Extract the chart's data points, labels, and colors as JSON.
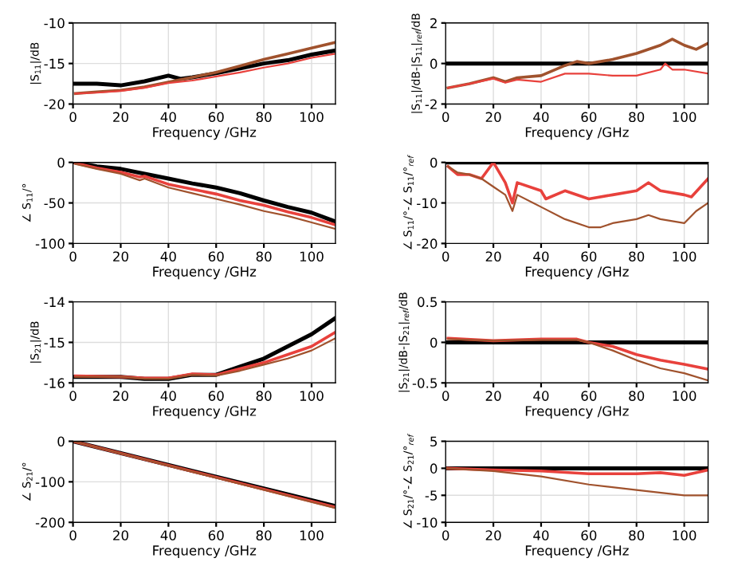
{
  "chart_data": [
    {
      "type": "line",
      "ylabel": "|S$_{11}$|/dB",
      "xlabel": "Frequency /GHz",
      "xlim": [
        0,
        110
      ],
      "xticks": [
        0,
        20,
        40,
        60,
        80,
        100
      ],
      "ylim": [
        -20,
        -10
      ],
      "yticks": [
        -20,
        -15,
        -10
      ],
      "grid": true,
      "series": [
        {
          "color": "#000000",
          "x": [
            1,
            10,
            20,
            30,
            40,
            45,
            50,
            60,
            70,
            80,
            90,
            100,
            110
          ],
          "values": [
            -17.5,
            -17.5,
            -17.7,
            -17.2,
            -16.5,
            -16.9,
            -16.7,
            -16.2,
            -15.6,
            -15.0,
            -14.6,
            -13.9,
            -13.4
          ]
        },
        {
          "color": "#a0522d",
          "x": [
            1,
            10,
            20,
            30,
            40,
            50,
            60,
            70,
            80,
            90,
            100,
            110
          ],
          "values": [
            -18.7,
            -18.5,
            -18.3,
            -17.9,
            -17.3,
            -16.7,
            -16.1,
            -15.3,
            -14.5,
            -13.8,
            -13.1,
            -12.4
          ]
        },
        {
          "color": "#e8413c",
          "x": [
            1,
            10,
            20,
            30,
            40,
            50,
            60,
            70,
            80,
            90,
            100,
            110
          ],
          "values": [
            -18.7,
            -18.6,
            -18.4,
            -18.0,
            -17.4,
            -17.1,
            -16.6,
            -16.1,
            -15.5,
            -15.0,
            -14.3,
            -13.8
          ]
        }
      ]
    },
    {
      "type": "line",
      "ylabel": "|S$_{11}$|/dB-|S$_{11}$|$_{ref}$/dB",
      "xlabel": "Frequency /GHz",
      "xlim": [
        0,
        110
      ],
      "xticks": [
        0,
        20,
        40,
        60,
        80,
        100
      ],
      "ylim": [
        -2,
        2
      ],
      "yticks": [
        -2,
        0,
        2
      ],
      "grid": true,
      "series": [
        {
          "color": "#000000",
          "x": [
            0,
            110
          ],
          "values": [
            0,
            0
          ]
        },
        {
          "color": "#a0522d",
          "x": [
            1,
            10,
            20,
            25,
            30,
            40,
            50,
            55,
            60,
            70,
            80,
            90,
            95,
            100,
            105,
            110
          ],
          "values": [
            -1.2,
            -1.0,
            -0.7,
            -0.9,
            -0.7,
            -0.6,
            -0.1,
            0.1,
            0.0,
            0.2,
            0.5,
            0.9,
            1.2,
            0.9,
            0.7,
            1.0
          ]
        },
        {
          "color": "#e8413c",
          "x": [
            1,
            10,
            20,
            25,
            30,
            40,
            50,
            60,
            70,
            80,
            90,
            92,
            95,
            100,
            110
          ],
          "values": [
            -1.2,
            -1.0,
            -0.75,
            -0.95,
            -0.8,
            -0.9,
            -0.5,
            -0.5,
            -0.6,
            -0.6,
            -0.3,
            0.0,
            -0.3,
            -0.3,
            -0.5
          ]
        }
      ]
    },
    {
      "type": "line",
      "ylabel": "∠ S$_{11}$/°",
      "xlabel": "Frequency /GHz",
      "xlim": [
        0,
        110
      ],
      "xticks": [
        0,
        20,
        40,
        60,
        80,
        100
      ],
      "ylim": [
        -100,
        0
      ],
      "yticks": [
        -100,
        -50,
        0
      ],
      "grid": true,
      "series": [
        {
          "color": "#000000",
          "x": [
            1,
            10,
            20,
            30,
            40,
            50,
            60,
            70,
            80,
            90,
            100,
            110
          ],
          "values": [
            0,
            -5,
            -8,
            -14,
            -20,
            -26,
            -31,
            -38,
            -47,
            -55,
            -62,
            -73
          ]
        },
        {
          "color": "#e8413c",
          "x": [
            1,
            10,
            20,
            28,
            30,
            40,
            50,
            60,
            70,
            80,
            90,
            100,
            110
          ],
          "values": [
            -1,
            -7,
            -12,
            -18,
            -17,
            -27,
            -33,
            -39,
            -47,
            -53,
            -61,
            -68,
            -77
          ]
        },
        {
          "color": "#a0522d",
          "x": [
            1,
            10,
            20,
            28,
            30,
            40,
            50,
            60,
            70,
            80,
            90,
            100,
            110
          ],
          "values": [
            -2,
            -8,
            -14,
            -22,
            -20,
            -31,
            -38,
            -45,
            -52,
            -60,
            -66,
            -74,
            -82
          ]
        }
      ]
    },
    {
      "type": "line",
      "ylabel": "∠ S$_{11}$/°-∠ S$_{11}$/°$_{ref}$",
      "xlabel": "Frequency /GHz",
      "xlim": [
        0,
        110
      ],
      "xticks": [
        0,
        20,
        40,
        60,
        80,
        100
      ],
      "ylim": [
        -20,
        0
      ],
      "yticks": [
        -20,
        -10,
        0
      ],
      "grid": true,
      "series": [
        {
          "color": "#000000",
          "x": [
            0,
            110
          ],
          "values": [
            0,
            0
          ]
        },
        {
          "color": "#e8413c",
          "x": [
            1,
            5,
            10,
            15,
            20,
            25,
            28,
            30,
            40,
            42,
            50,
            60,
            70,
            80,
            85,
            90,
            100,
            103,
            110
          ],
          "values": [
            -1,
            -3,
            -3,
            -4,
            0,
            -5,
            -10,
            -5,
            -7,
            -9,
            -7,
            -9,
            -8,
            -7,
            -5,
            -7,
            -8,
            -8.5,
            -4
          ]
        },
        {
          "color": "#a0522d",
          "x": [
            1,
            5,
            10,
            15,
            20,
            25,
            28,
            30,
            40,
            50,
            60,
            65,
            70,
            80,
            85,
            90,
            100,
            105,
            110
          ],
          "values": [
            -1,
            -2.5,
            -3,
            -4,
            -6,
            -8,
            -12,
            -8,
            -11,
            -14,
            -16,
            -16,
            -15,
            -14,
            -13,
            -14,
            -15,
            -12,
            -10
          ]
        }
      ]
    },
    {
      "type": "line",
      "ylabel": "|S$_{21}$|/dB",
      "xlabel": "Frequency /GHz",
      "xlim": [
        0,
        110
      ],
      "xticks": [
        0,
        20,
        40,
        60,
        80,
        100
      ],
      "ylim": [
        -16,
        -14
      ],
      "yticks": [
        -16,
        -15,
        -14
      ],
      "grid": true,
      "series": [
        {
          "color": "#000000",
          "x": [
            1,
            20,
            30,
            40,
            50,
            60,
            70,
            80,
            90,
            100,
            110
          ],
          "values": [
            -15.85,
            -15.85,
            -15.9,
            -15.9,
            -15.8,
            -15.8,
            -15.6,
            -15.4,
            -15.1,
            -14.8,
            -14.4
          ]
        },
        {
          "color": "#e8413c",
          "x": [
            1,
            20,
            30,
            40,
            50,
            60,
            70,
            80,
            90,
            100,
            110
          ],
          "values": [
            -15.83,
            -15.85,
            -15.88,
            -15.88,
            -15.78,
            -15.8,
            -15.65,
            -15.5,
            -15.3,
            -15.1,
            -14.75
          ]
        },
        {
          "color": "#a0522d",
          "x": [
            1,
            20,
            30,
            40,
            50,
            60,
            70,
            80,
            90,
            100,
            110
          ],
          "values": [
            -15.85,
            -15.85,
            -15.9,
            -15.9,
            -15.8,
            -15.82,
            -15.7,
            -15.55,
            -15.4,
            -15.2,
            -14.9
          ]
        }
      ]
    },
    {
      "type": "line",
      "ylabel": "|S$_{21}$|/dB-|S$_{21}$|$_{ref}$/dB",
      "xlabel": "Frequency /GHz",
      "xlim": [
        0,
        110
      ],
      "xticks": [
        0,
        20,
        40,
        60,
        80,
        100
      ],
      "ylim": [
        -0.5,
        0.5
      ],
      "yticks": [
        -0.5,
        0,
        0.5
      ],
      "grid": true,
      "series": [
        {
          "color": "#000000",
          "x": [
            0,
            110
          ],
          "values": [
            0,
            0
          ]
        },
        {
          "color": "#e8413c",
          "x": [
            1,
            20,
            40,
            55,
            60,
            70,
            80,
            90,
            100,
            110
          ],
          "values": [
            0.05,
            0.02,
            0.04,
            0.04,
            0.0,
            -0.05,
            -0.15,
            -0.22,
            -0.27,
            -0.33
          ]
        },
        {
          "color": "#a0522d",
          "x": [
            1,
            20,
            40,
            55,
            60,
            70,
            80,
            90,
            100,
            110
          ],
          "values": [
            0.04,
            0.02,
            0.03,
            0.03,
            0.0,
            -0.1,
            -0.22,
            -0.32,
            -0.38,
            -0.47
          ]
        }
      ]
    },
    {
      "type": "line",
      "ylabel": "∠ S$_{21}$/°",
      "xlabel": "Frequency /GHz",
      "xlim": [
        0,
        110
      ],
      "xticks": [
        0,
        20,
        40,
        60,
        80,
        100
      ],
      "ylim": [
        -200,
        0
      ],
      "yticks": [
        -200,
        -100,
        0
      ],
      "grid": true,
      "series": [
        {
          "color": "#000000",
          "x": [
            0,
            50,
            110
          ],
          "values": [
            0,
            -73,
            -160
          ]
        },
        {
          "color": "#e8413c",
          "x": [
            0,
            50,
            110
          ],
          "values": [
            0,
            -74,
            -163
          ]
        },
        {
          "color": "#a0522d",
          "x": [
            0,
            50,
            110
          ],
          "values": [
            0,
            -75,
            -165
          ]
        }
      ]
    },
    {
      "type": "line",
      "ylabel": "∠ S$_{21}$/°-∠ S$_{21}$/°$_{ref}$",
      "xlabel": "Frequency /GHz",
      "xlim": [
        0,
        110
      ],
      "xticks": [
        0,
        20,
        40,
        60,
        80,
        100
      ],
      "ylim": [
        -10,
        5
      ],
      "yticks": [
        -10,
        -5,
        0,
        5
      ],
      "grid": true,
      "series": [
        {
          "color": "#000000",
          "x": [
            0,
            110
          ],
          "values": [
            0,
            0
          ]
        },
        {
          "color": "#e8413c",
          "x": [
            0,
            20,
            40,
            60,
            80,
            90,
            100,
            110
          ],
          "values": [
            0,
            -0.3,
            -0.5,
            -1,
            -1,
            -0.8,
            -1.3,
            -0.3
          ]
        },
        {
          "color": "#a0522d",
          "x": [
            0,
            20,
            40,
            60,
            80,
            100,
            110
          ],
          "values": [
            0,
            -0.5,
            -1.5,
            -3,
            -4,
            -5,
            -5
          ]
        }
      ]
    }
  ]
}
